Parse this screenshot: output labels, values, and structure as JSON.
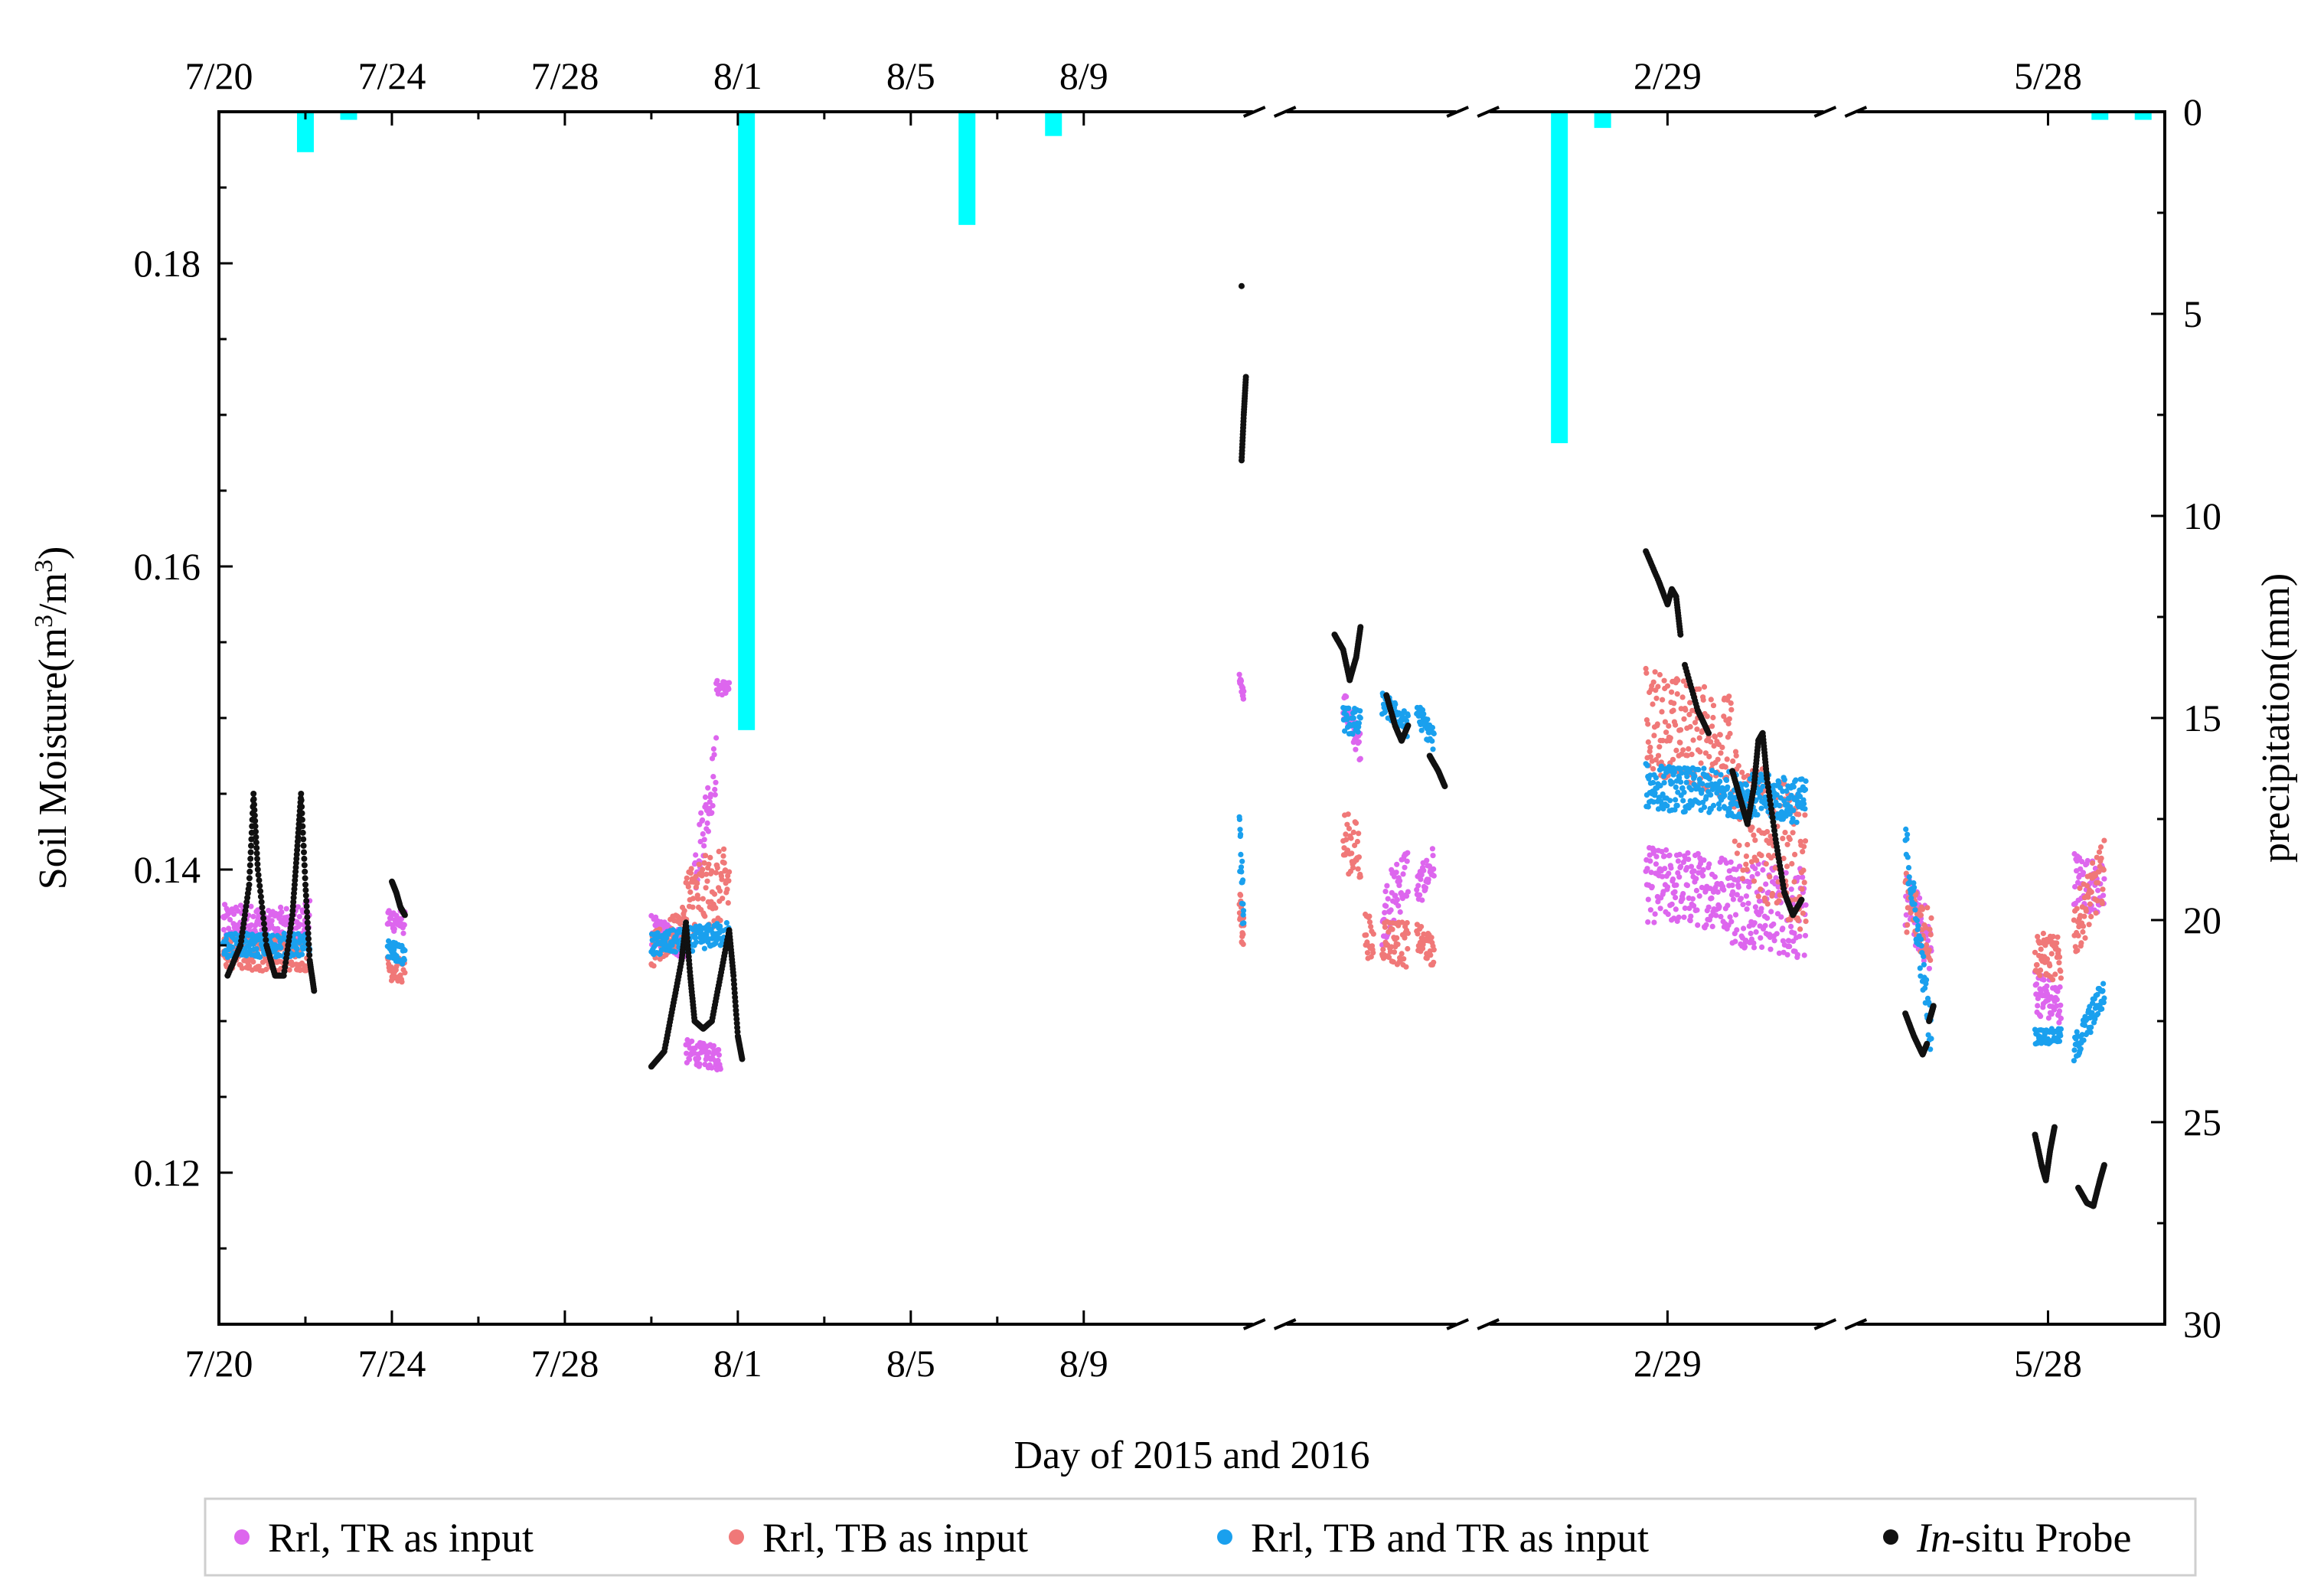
{
  "chart_data": {
    "type": "scatter",
    "xlabel": "Day of 2015 and 2016",
    "ylabel_main": "Soil Moisture(m",
    "ylabel_sup1": "3",
    "ylabel_mid": "/m",
    "ylabel_sup2": "3",
    "ylabel_end": ")",
    "y2label": "precipitation(mm)",
    "ylim": [
      0.11,
      0.19
    ],
    "y2lim": [
      0,
      30
    ],
    "yticks": [
      {
        "value": 0.12,
        "label": "0.12"
      },
      {
        "value": 0.14,
        "label": "0.14"
      },
      {
        "value": 0.16,
        "label": "0.16"
      },
      {
        "value": 0.18,
        "label": "0.18"
      }
    ],
    "y2ticks": [
      {
        "value": 0,
        "label": "0"
      },
      {
        "value": 5,
        "label": "5"
      },
      {
        "value": 10,
        "label": "10"
      },
      {
        "value": 15,
        "label": "15"
      },
      {
        "value": 20,
        "label": "20"
      },
      {
        "value": 25,
        "label": "25"
      },
      {
        "value": 30,
        "label": "30"
      }
    ],
    "xticks": [
      {
        "label": "7/20",
        "pos": 0
      },
      {
        "label": "7/24",
        "pos": 4
      },
      {
        "label": "7/28",
        "pos": 8
      },
      {
        "label": "8/1",
        "pos": 12
      },
      {
        "label": "8/5",
        "pos": 16
      },
      {
        "label": "8/9",
        "pos": 20
      },
      {
        "label": "2/29",
        "pos": 33.5
      },
      {
        "label": "5/28",
        "pos": 42.3
      }
    ],
    "xmax": 45,
    "axis_breaks": [
      24.3,
      29.0,
      37.5
    ],
    "legend": [
      {
        "label": "Rrl, TR as input",
        "color": "#dd66ee"
      },
      {
        "label": "Rrl, TB as input",
        "color": "#f07878"
      },
      {
        "label": "Rrl, TB and TR as input",
        "color": "#1aa0ee"
      },
      {
        "label_italic": "In",
        "label_rest": "-situ Probe",
        "color": "#111111"
      }
    ],
    "precipitation_mm": [
      {
        "x": 2.0,
        "value": 1.0
      },
      {
        "x": 3.0,
        "value": 0.2
      },
      {
        "x": 12.2,
        "value": 15.3
      },
      {
        "x": 17.3,
        "value": 2.8
      },
      {
        "x": 19.3,
        "value": 0.6
      },
      {
        "x": 31.0,
        "value": 8.2
      },
      {
        "x": 32.0,
        "value": 0.4
      },
      {
        "x": 43.5,
        "value": 0.2
      },
      {
        "x": 44.5,
        "value": 0.2
      }
    ],
    "series": [
      {
        "name": "Rrl, TR as input",
        "color": "#dd66ee",
        "segments": [
          {
            "x0": 0.1,
            "x1": 1.0,
            "y0": 0.1365,
            "y1": 0.1365,
            "spread": 0.0012
          },
          {
            "x0": 1.0,
            "x1": 2.1,
            "y0": 0.136,
            "y1": 0.1368,
            "spread": 0.0012
          },
          {
            "x0": 3.9,
            "x1": 4.3,
            "y0": 0.1368,
            "y1": 0.1365,
            "spread": 0.0008
          },
          {
            "x0": 10.0,
            "x1": 10.8,
            "y0": 0.136,
            "y1": 0.135,
            "spread": 0.001
          },
          {
            "x0": 10.8,
            "x1": 11.6,
            "y0": 0.128,
            "y1": 0.1275,
            "spread": 0.0008
          },
          {
            "x0": 11.0,
            "x1": 11.5,
            "y0": 0.14,
            "y1": 0.147,
            "spread": 0.002
          },
          {
            "x0": 11.5,
            "x1": 11.8,
            "y0": 0.152,
            "y1": 0.152,
            "spread": 0.0005
          },
          {
            "x0": 23.6,
            "x1": 23.7,
            "y0": 0.1525,
            "y1": 0.1515,
            "spread": 0.0004
          },
          {
            "x0": 26.0,
            "x1": 26.4,
            "y0": 0.151,
            "y1": 0.148,
            "spread": 0.001
          },
          {
            "x0": 26.9,
            "x1": 27.5,
            "y0": 0.137,
            "y1": 0.14,
            "spread": 0.002
          },
          {
            "x0": 27.7,
            "x1": 28.1,
            "y0": 0.1385,
            "y1": 0.1405,
            "spread": 0.0012
          },
          {
            "x0": 33.0,
            "x1": 35.0,
            "y0": 0.139,
            "y1": 0.1385,
            "spread": 0.0025
          },
          {
            "x0": 35.0,
            "x1": 36.7,
            "y0": 0.138,
            "y1": 0.137,
            "spread": 0.003
          },
          {
            "x0": 39.0,
            "x1": 39.6,
            "y0": 0.138,
            "y1": 0.135,
            "spread": 0.002
          },
          {
            "x0": 42.0,
            "x1": 42.6,
            "y0": 0.132,
            "y1": 0.131,
            "spread": 0.0015
          },
          {
            "x0": 42.9,
            "x1": 43.6,
            "y0": 0.1395,
            "y1": 0.1385,
            "spread": 0.0018
          }
        ]
      },
      {
        "name": "Rrl, TB as input",
        "color": "#f07878",
        "segments": [
          {
            "x0": 0.1,
            "x1": 2.1,
            "y0": 0.1345,
            "y1": 0.1345,
            "spread": 0.0012
          },
          {
            "x0": 3.9,
            "x1": 4.3,
            "y0": 0.1335,
            "y1": 0.1333,
            "spread": 0.0008
          },
          {
            "x0": 10.0,
            "x1": 10.8,
            "y0": 0.1345,
            "y1": 0.1365,
            "spread": 0.0012
          },
          {
            "x0": 10.8,
            "x1": 11.8,
            "y0": 0.138,
            "y1": 0.139,
            "spread": 0.0025
          },
          {
            "x0": 23.6,
            "x1": 23.7,
            "y0": 0.1375,
            "y1": 0.136,
            "spread": 0.0015
          },
          {
            "x0": 26.0,
            "x1": 26.4,
            "y0": 0.142,
            "y1": 0.141,
            "spread": 0.002
          },
          {
            "x0": 26.5,
            "x1": 26.7,
            "y0": 0.136,
            "y1": 0.135,
            "spread": 0.0015
          },
          {
            "x0": 26.9,
            "x1": 27.5,
            "y0": 0.1355,
            "y1": 0.135,
            "spread": 0.0015
          },
          {
            "x0": 27.7,
            "x1": 28.1,
            "y0": 0.1355,
            "y1": 0.1345,
            "spread": 0.001
          },
          {
            "x0": 33.0,
            "x1": 35.0,
            "y0": 0.15,
            "y1": 0.148,
            "spread": 0.0035
          },
          {
            "x0": 35.0,
            "x1": 36.7,
            "y0": 0.144,
            "y1": 0.14,
            "spread": 0.0045
          },
          {
            "x0": 39.0,
            "x1": 39.6,
            "y0": 0.138,
            "y1": 0.1355,
            "spread": 0.002
          },
          {
            "x0": 42.0,
            "x1": 42.6,
            "y0": 0.1345,
            "y1": 0.134,
            "spread": 0.0015
          },
          {
            "x0": 42.9,
            "x1": 43.6,
            "y0": 0.136,
            "y1": 0.14,
            "spread": 0.002
          }
        ]
      },
      {
        "name": "Rrl, TB and TR as input",
        "color": "#1aa0ee",
        "segments": [
          {
            "x0": 0.1,
            "x1": 2.1,
            "y0": 0.135,
            "y1": 0.135,
            "spread": 0.0008
          },
          {
            "x0": 3.9,
            "x1": 4.3,
            "y0": 0.1348,
            "y1": 0.1343,
            "spread": 0.0006
          },
          {
            "x0": 10.0,
            "x1": 11.8,
            "y0": 0.135,
            "y1": 0.1358,
            "spread": 0.0008
          },
          {
            "x0": 23.6,
            "x1": 23.7,
            "y0": 0.142,
            "y1": 0.137,
            "spread": 0.002
          },
          {
            "x0": 26.0,
            "x1": 26.4,
            "y0": 0.15,
            "y1": 0.1495,
            "spread": 0.001
          },
          {
            "x0": 26.9,
            "x1": 27.5,
            "y0": 0.151,
            "y1": 0.1495,
            "spread": 0.0008
          },
          {
            "x0": 27.7,
            "x1": 28.1,
            "y0": 0.1505,
            "y1": 0.1485,
            "spread": 0.0008
          },
          {
            "x0": 33.0,
            "x1": 35.0,
            "y0": 0.1455,
            "y1": 0.145,
            "spread": 0.0015
          },
          {
            "x0": 35.0,
            "x1": 36.7,
            "y0": 0.145,
            "y1": 0.1445,
            "spread": 0.0015
          },
          {
            "x0": 39.0,
            "x1": 39.6,
            "y0": 0.142,
            "y1": 0.129,
            "spread": 0.0015
          },
          {
            "x0": 42.0,
            "x1": 42.6,
            "y0": 0.129,
            "y1": 0.129,
            "spread": 0.0005
          },
          {
            "x0": 42.9,
            "x1": 43.6,
            "y0": 0.128,
            "y1": 0.132,
            "spread": 0.001
          }
        ]
      },
      {
        "name": "In-situ Probe",
        "color": "#111111",
        "curves": [
          [
            [
              0.2,
              0.133
            ],
            [
              0.5,
              0.135
            ],
            [
              0.7,
              0.139
            ],
            [
              0.8,
              0.145
            ],
            [
              0.9,
              0.14
            ],
            [
              1.1,
              0.135
            ],
            [
              1.3,
              0.133
            ],
            [
              1.5,
              0.133
            ],
            [
              1.7,
              0.137
            ],
            [
              1.8,
              0.141
            ],
            [
              1.9,
              0.145
            ],
            [
              2.0,
              0.139
            ],
            [
              2.1,
              0.134
            ],
            [
              2.2,
              0.132
            ]
          ],
          [
            [
              4.0,
              0.1392
            ],
            [
              4.1,
              0.1385
            ],
            [
              4.2,
              0.1375
            ],
            [
              4.3,
              0.137
            ]
          ],
          [
            [
              10.0,
              0.127
            ],
            [
              10.3,
              0.128
            ],
            [
              10.5,
              0.131
            ],
            [
              10.7,
              0.134
            ],
            [
              10.8,
              0.1365
            ],
            [
              10.9,
              0.133
            ],
            [
              11.0,
              0.13
            ],
            [
              11.2,
              0.1295
            ],
            [
              11.4,
              0.13
            ],
            [
              11.6,
              0.133
            ],
            [
              11.8,
              0.136
            ],
            [
              11.9,
              0.133
            ],
            [
              12.0,
              0.129
            ],
            [
              12.1,
              0.1275
            ]
          ],
          [
            [
              23.65,
              0.1785
            ]
          ],
          [
            [
              23.65,
              0.167
            ],
            [
              23.7,
              0.17
            ],
            [
              23.75,
              0.1725
            ]
          ],
          [
            [
              25.8,
              0.1555
            ],
            [
              26.0,
              0.1545
            ],
            [
              26.15,
              0.1525
            ],
            [
              26.3,
              0.154
            ],
            [
              26.4,
              0.156
            ]
          ],
          [
            [
              27.0,
              0.1515
            ],
            [
              27.2,
              0.1495
            ],
            [
              27.35,
              0.1485
            ],
            [
              27.5,
              0.1495
            ]
          ],
          [
            [
              28.0,
              0.1475
            ],
            [
              28.2,
              0.1465
            ],
            [
              28.35,
              0.1455
            ]
          ],
          [
            [
              33.0,
              0.161
            ],
            [
              33.3,
              0.159
            ],
            [
              33.5,
              0.1575
            ],
            [
              33.6,
              0.1585
            ],
            [
              33.7,
              0.158
            ],
            [
              33.8,
              0.1555
            ]
          ],
          [
            [
              33.9,
              0.1535
            ],
            [
              34.2,
              0.1505
            ],
            [
              34.45,
              0.149
            ]
          ],
          [
            [
              35.0,
              0.1465
            ],
            [
              35.2,
              0.1445
            ],
            [
              35.35,
              0.143
            ],
            [
              35.5,
              0.1455
            ],
            [
              35.6,
              0.1485
            ],
            [
              35.7,
              0.149
            ],
            [
              35.8,
              0.146
            ],
            [
              36.0,
              0.142
            ],
            [
              36.2,
              0.1385
            ],
            [
              36.4,
              0.137
            ],
            [
              36.6,
              0.138
            ]
          ],
          [
            [
              39.0,
              0.1305
            ],
            [
              39.2,
              0.129
            ],
            [
              39.4,
              0.1278
            ],
            [
              39.5,
              0.1285
            ]
          ],
          [
            [
              39.55,
              0.13
            ],
            [
              39.6,
              0.1305
            ],
            [
              39.65,
              0.131
            ]
          ],
          [
            [
              42.0,
              0.1225
            ],
            [
              42.15,
              0.1205
            ],
            [
              42.25,
              0.1195
            ],
            [
              42.35,
              0.1215
            ],
            [
              42.45,
              0.123
            ]
          ],
          [
            [
              43.0,
              0.119
            ],
            [
              43.2,
              0.118
            ],
            [
              43.35,
              0.1178
            ],
            [
              43.5,
              0.1195
            ],
            [
              43.6,
              0.1205
            ]
          ]
        ]
      }
    ]
  }
}
